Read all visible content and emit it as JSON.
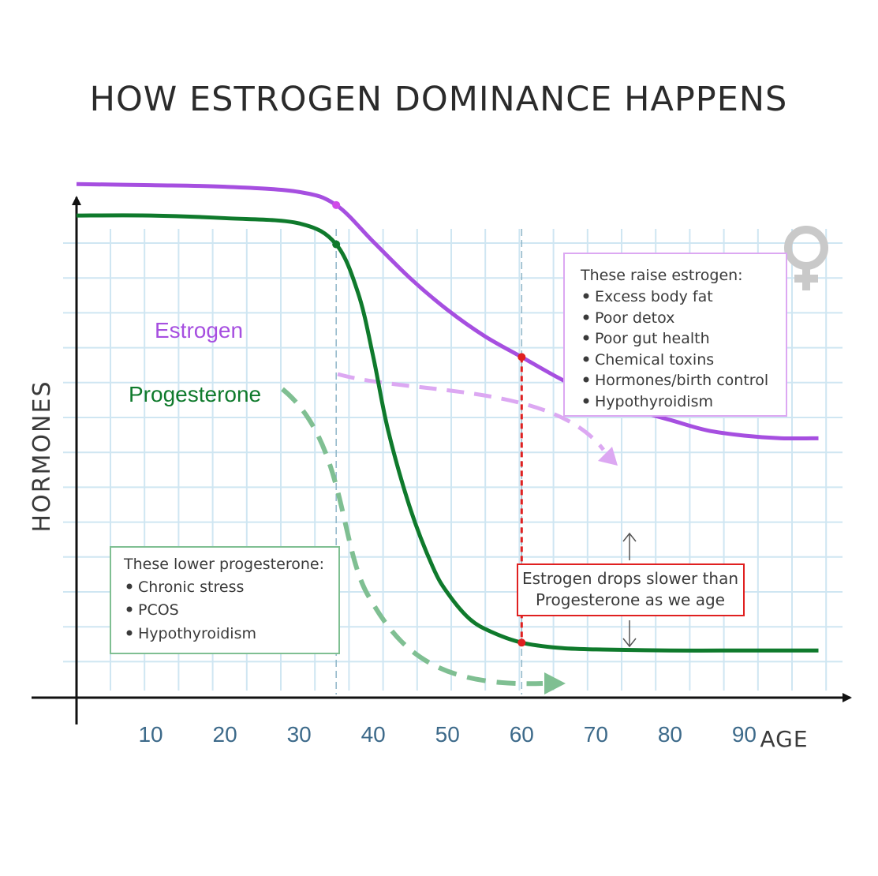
{
  "title": "HOW ESTROGEN DOMINANCE HAPPENS",
  "colors": {
    "estrogen": "#a64fe0",
    "estrogen_light": "#dca8f2",
    "progesterone": "#0f7a2c",
    "progesterone_light": "#7fbf92",
    "marker": "#e02020",
    "grid": "#cfe6f2",
    "axis": "#111111"
  },
  "icon": "female-symbol-icon",
  "raise_box": {
    "heading": "These raise estrogen:",
    "items": [
      "Excess body fat",
      "Poor detox",
      "Poor gut health",
      "Chemical toxins",
      "Hormones/birth control",
      "Hypothyroidism"
    ]
  },
  "lower_box": {
    "heading": "These lower progesterone:",
    "items": [
      "Chronic stress",
      "PCOS",
      "Hypothyroidism"
    ]
  },
  "note": {
    "lines": [
      "Estrogen drops slower than",
      "Progesterone as we age"
    ]
  },
  "chart_data": {
    "type": "line",
    "title": "HOW ESTROGEN DOMINANCE HAPPENS",
    "xlabel": "AGE",
    "ylabel": "HORMONES",
    "x_ticks": [
      10,
      20,
      30,
      40,
      50,
      60,
      70,
      80,
      90
    ],
    "xlim": [
      0,
      100
    ],
    "ylim": [
      0,
      10
    ],
    "grid": true,
    "series": [
      {
        "name": "Estrogen",
        "x": [
          0,
          10,
          20,
          30,
          35,
          40,
          45,
          50,
          55,
          60,
          65,
          70,
          75,
          80,
          85,
          90,
          95,
          100
        ],
        "y": [
          9.8,
          9.78,
          9.75,
          9.65,
          9.4,
          8.7,
          8.0,
          7.4,
          6.9,
          6.5,
          6.1,
          5.75,
          5.5,
          5.3,
          5.1,
          5.0,
          4.95,
          4.95
        ]
      },
      {
        "name": "Progesterone",
        "x": [
          0,
          10,
          20,
          30,
          35,
          38,
          40,
          42,
          45,
          48,
          50,
          53,
          56,
          60,
          65,
          70,
          80,
          90,
          100
        ],
        "y": [
          9.2,
          9.2,
          9.15,
          9.05,
          8.65,
          7.7,
          6.5,
          5.1,
          3.6,
          2.5,
          2.0,
          1.5,
          1.25,
          1.05,
          0.95,
          0.92,
          0.9,
          0.9,
          0.9
        ]
      }
    ],
    "markers": [
      {
        "series": "Estrogen",
        "x": 35
      },
      {
        "series": "Progesterone",
        "x": 35
      },
      {
        "series": "Estrogen",
        "x": 60
      },
      {
        "series": "Progesterone",
        "x": 60
      }
    ],
    "reference_lines_x": [
      35,
      60
    ]
  }
}
